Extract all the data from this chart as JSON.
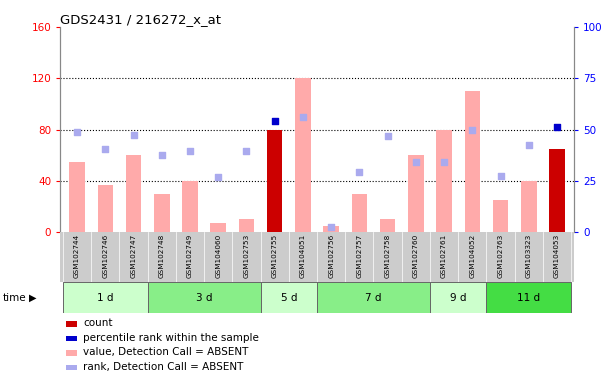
{
  "title": "GDS2431 / 216272_x_at",
  "samples": [
    "GSM102744",
    "GSM102746",
    "GSM102747",
    "GSM102748",
    "GSM102749",
    "GSM104060",
    "GSM102753",
    "GSM102755",
    "GSM104051",
    "GSM102756",
    "GSM102757",
    "GSM102758",
    "GSM102760",
    "GSM102761",
    "GSM104052",
    "GSM102763",
    "GSM103323",
    "GSM104053"
  ],
  "bar_values": [
    55,
    37,
    60,
    30,
    40,
    7,
    10,
    80,
    120,
    5,
    30,
    10,
    60,
    80,
    110,
    25,
    40,
    65
  ],
  "bar_colors": [
    "#ffaaaa",
    "#ffaaaa",
    "#ffaaaa",
    "#ffaaaa",
    "#ffaaaa",
    "#ffaaaa",
    "#ffaaaa",
    "#cc0000",
    "#ffaaaa",
    "#ffaaaa",
    "#ffaaaa",
    "#ffaaaa",
    "#ffaaaa",
    "#ffaaaa",
    "#ffaaaa",
    "#ffaaaa",
    "#ffaaaa",
    "#cc0000"
  ],
  "rank_dots": [
    78,
    65,
    76,
    60,
    63,
    43,
    63,
    87,
    90,
    4,
    47,
    75,
    55,
    55,
    80,
    44,
    68,
    82
  ],
  "rank_colors": [
    "#aaaaee",
    "#aaaaee",
    "#aaaaee",
    "#aaaaee",
    "#aaaaee",
    "#aaaaee",
    "#aaaaee",
    "#0000cc",
    "#aaaaee",
    "#aaaaee",
    "#aaaaee",
    "#aaaaee",
    "#aaaaee",
    "#aaaaee",
    "#aaaaee",
    "#aaaaee",
    "#aaaaee",
    "#0000cc"
  ],
  "time_groups": [
    {
      "label": "1 d",
      "start": 0,
      "end": 3,
      "color": "#ccffcc"
    },
    {
      "label": "3 d",
      "start": 3,
      "end": 7,
      "color": "#88ee88"
    },
    {
      "label": "5 d",
      "start": 7,
      "end": 9,
      "color": "#ccffcc"
    },
    {
      "label": "7 d",
      "start": 9,
      "end": 13,
      "color": "#88ee88"
    },
    {
      "label": "9 d",
      "start": 13,
      "end": 15,
      "color": "#ccffcc"
    },
    {
      "label": "11 d",
      "start": 15,
      "end": 18,
      "color": "#44dd44"
    }
  ],
  "ylim_left": [
    0,
    160
  ],
  "ylim_right": [
    0,
    100
  ],
  "yticks_left": [
    0,
    40,
    80,
    120,
    160
  ],
  "yticks_right": [
    0,
    25,
    50,
    75,
    100
  ],
  "ytick_labels_left": [
    "0",
    "40",
    "80",
    "120",
    "160"
  ],
  "ytick_labels_right": [
    "0",
    "25",
    "50",
    "75",
    "100%"
  ],
  "grid_values": [
    40,
    80,
    120
  ],
  "bg_color": "#ffffff",
  "legend": [
    {
      "label": "count",
      "color": "#cc0000"
    },
    {
      "label": "percentile rank within the sample",
      "color": "#0000cc"
    },
    {
      "label": "value, Detection Call = ABSENT",
      "color": "#ffaaaa"
    },
    {
      "label": "rank, Detection Call = ABSENT",
      "color": "#aaaaee"
    }
  ]
}
